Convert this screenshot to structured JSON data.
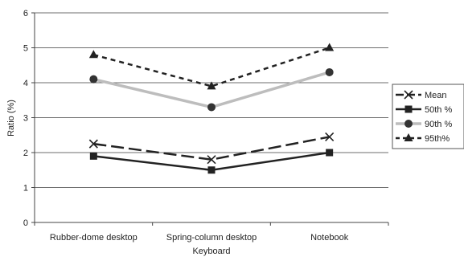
{
  "chart_data": {
    "type": "line",
    "title": "",
    "xlabel": "Keyboard",
    "ylabel": "Ratio (%)",
    "categories": [
      "Rubber-dome desktop",
      "Spring-column desktop",
      "Notebook"
    ],
    "ylim": [
      0,
      6
    ],
    "yticks": [
      0,
      1,
      2,
      3,
      4,
      5,
      6
    ],
    "grid": true,
    "legend_position": "right",
    "series": [
      {
        "name": "Mean",
        "values": [
          2.25,
          1.8,
          2.45
        ],
        "color": "#222222",
        "line_style": "long-dash",
        "marker": "x"
      },
      {
        "name": "50th %",
        "values": [
          1.9,
          1.5,
          2.0
        ],
        "color": "#222222",
        "line_style": "solid",
        "marker": "square"
      },
      {
        "name": "90th %",
        "values": [
          4.1,
          3.3,
          4.3
        ],
        "color": "#bdbdbd",
        "marker_color": "#333333",
        "line_style": "solid",
        "marker": "circle"
      },
      {
        "name": "95th%",
        "values": [
          4.8,
          3.9,
          5.0
        ],
        "color": "#222222",
        "line_style": "short-dash",
        "marker": "triangle"
      }
    ]
  }
}
